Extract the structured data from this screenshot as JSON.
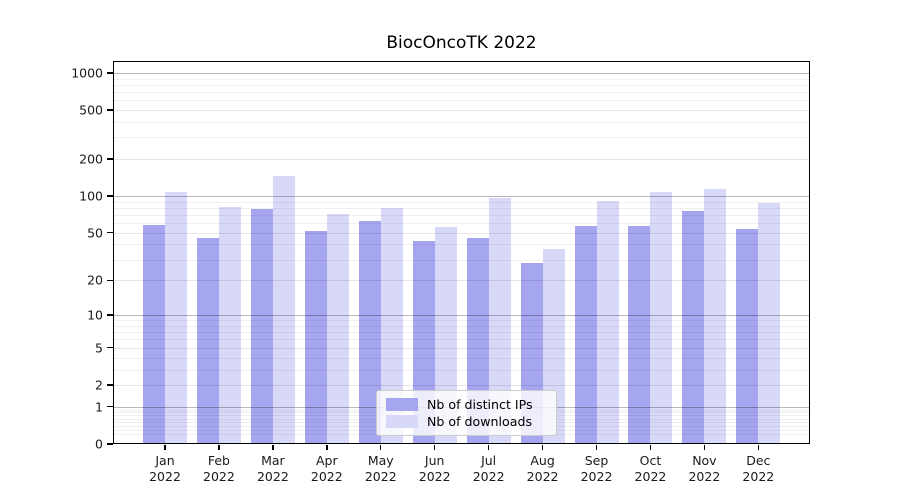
{
  "chart_data": {
    "type": "bar",
    "title": "BiocOncoTK 2022",
    "categories": [
      "Jan",
      "Feb",
      "Mar",
      "Apr",
      "May",
      "Jun",
      "Jul",
      "Aug",
      "Sep",
      "Oct",
      "Nov",
      "Dec"
    ],
    "category_year": "2022",
    "series": [
      {
        "name": "Nb of distinct IPs",
        "color": "#a5a5f0",
        "values": [
          58,
          45,
          78,
          52,
          63,
          43,
          45,
          28,
          57,
          57,
          76,
          54
        ]
      },
      {
        "name": "Nb of downloads",
        "color": "#d8d8f8",
        "values": [
          107,
          82,
          145,
          71,
          80,
          56,
          97,
          37,
          91,
          107,
          114,
          88
        ]
      }
    ],
    "yscale": "log1p",
    "yticks": [
      0,
      1,
      2,
      5,
      10,
      20,
      50,
      100,
      200,
      500,
      1000
    ],
    "ylim": [
      0,
      1250
    ],
    "grid": true,
    "legend_position": "lower center",
    "axis_color": "#000000",
    "major_grid_values": [
      1,
      10,
      100,
      1000
    ],
    "labeled_sub_grid_values": [
      2,
      5,
      20,
      50,
      200,
      500
    ]
  }
}
